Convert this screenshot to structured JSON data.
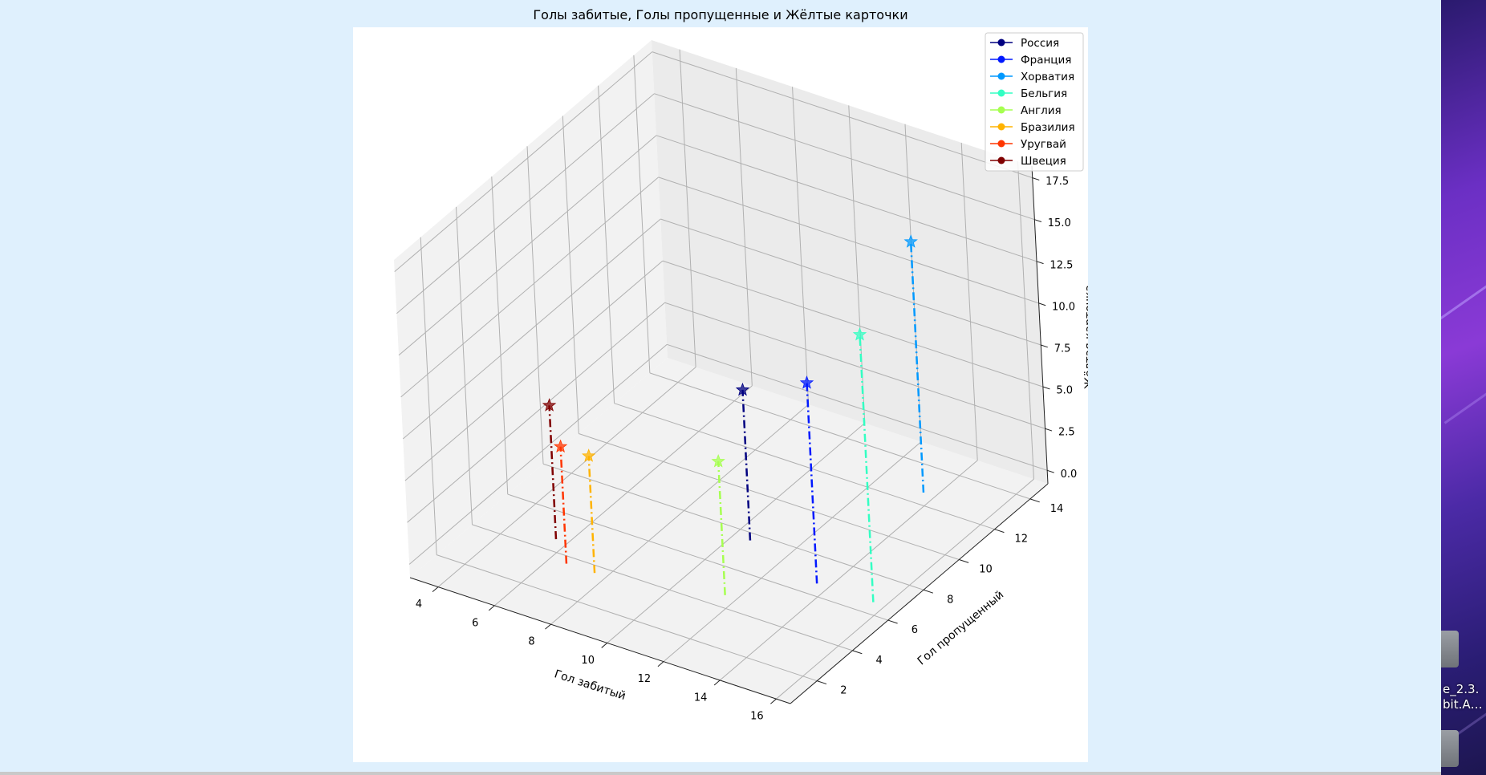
{
  "window": {
    "title": "Голы забитые, Голы пропущенные и Жёлтые карточки"
  },
  "desktop": {
    "icon_label": "e_2.3.\nbit.A…"
  },
  "chart_data": {
    "type": "scatter3d",
    "title": "Голы забитые, Голы пропущенные и Жёлтые карточки",
    "xlabel": "Гол забитый",
    "ylabel": "Гол пропущенный",
    "zlabel": "Жёлтая карточка",
    "x_ticks": [
      "4",
      "6",
      "8",
      "10",
      "12",
      "14",
      "16"
    ],
    "y_ticks": [
      "2",
      "4",
      "6",
      "8",
      "10",
      "12",
      "14"
    ],
    "z_ticks": [
      "0.0",
      "2.5",
      "5.0",
      "7.5",
      "10.0",
      "12.5",
      "15.0",
      "17.5"
    ],
    "xlim": [
      3,
      16.5
    ],
    "ylim": [
      0.5,
      15
    ],
    "zlim": [
      -0.8,
      18.2
    ],
    "grid": true,
    "legend_position": "top-right",
    "marker": "star",
    "stem_style": "dash-dot",
    "series": [
      {
        "name": "Россия",
        "color": "#000080",
        "x": 11,
        "y": 7,
        "z": 9
      },
      {
        "name": "Франция",
        "color": "#0019ff",
        "x": 14,
        "y": 6,
        "z": 12
      },
      {
        "name": "Хорватия",
        "color": "#0099ff",
        "x": 14,
        "y": 12,
        "z": 15
      },
      {
        "name": "Бельгия",
        "color": "#33ffc3",
        "x": 16,
        "y": 6,
        "z": 16
      },
      {
        "name": "Англия",
        "color": "#a6ff50",
        "x": 12,
        "y": 4,
        "z": 8
      },
      {
        "name": "Бразилия",
        "color": "#ffb300",
        "x": 8,
        "y": 3,
        "z": 7
      },
      {
        "name": "Уругвай",
        "color": "#ff3600",
        "x": 7,
        "y": 3,
        "z": 7
      },
      {
        "name": "Швеция",
        "color": "#800000",
        "x": 6,
        "y": 4,
        "z": 8
      }
    ]
  }
}
